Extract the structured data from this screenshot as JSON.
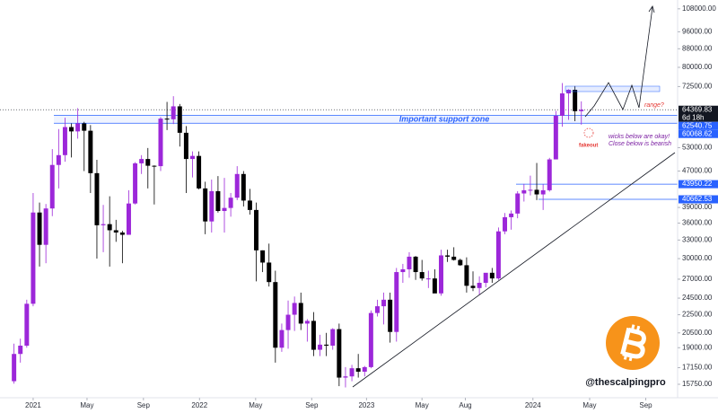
{
  "chart_data": {
    "type": "candlestick",
    "log_scale": true,
    "up_color": "#9c27d9",
    "down_color": "#000000",
    "candles": {
      "open": [
        16000,
        18400,
        19200,
        23800,
        38000,
        32200,
        38800,
        48500,
        51000,
        58900,
        57600,
        60000,
        57800,
        46500,
        35600,
        35800,
        34700,
        34300,
        33900,
        39800,
        48900,
        50000,
        48300,
        48200,
        61500,
        61300,
        65500,
        57200,
        50000,
        50800,
        43000,
        36300,
        42400,
        38300,
        38900,
        41000,
        46300,
        40400,
        38500,
        31300,
        29400,
        26600,
        19000,
        20800,
        22500,
        23900,
        21500,
        21800,
        18800,
        19300,
        19200,
        20900,
        16300,
        16400,
        17100,
        16800,
        17200,
        22700,
        23500,
        24300,
        20600,
        28000,
        28400,
        30300,
        28000,
        27100,
        27100,
        25100,
        30500,
        30300,
        29800,
        29000,
        26100,
        25800,
        26500,
        27900,
        27100,
        34500,
        37100,
        37800,
        41900,
        42600,
        42700,
        41700,
        42600,
        49900,
        62400,
        70000,
        71300,
        63900
      ],
      "high": [
        19400,
        19900,
        24300,
        42000,
        40000,
        39700,
        52600,
        58300,
        61800,
        60000,
        64900,
        60500,
        59500,
        49800,
        39500,
        41300,
        36600,
        34600,
        42600,
        49200,
        51000,
        52900,
        48400,
        62000,
        67000,
        69000,
        66300,
        59200,
        52000,
        52000,
        44500,
        45000,
        45800,
        45400,
        42000,
        48200,
        47000,
        42900,
        40000,
        31300,
        32400,
        28200,
        21500,
        24200,
        24700,
        25200,
        22000,
        22800,
        20300,
        20500,
        21000,
        21500,
        17200,
        17400,
        18400,
        17300,
        23000,
        24300,
        25200,
        25200,
        28600,
        29200,
        31000,
        30400,
        29800,
        28200,
        28400,
        31400,
        31400,
        31800,
        30000,
        30200,
        28100,
        27400,
        27500,
        28600,
        35200,
        37900,
        38400,
        42400,
        44000,
        45900,
        49000,
        43900,
        50300,
        64000,
        73800,
        71500,
        72700,
        67200
      ],
      "low": [
        15800,
        17600,
        19000,
        23500,
        28800,
        29300,
        37300,
        43000,
        49300,
        50400,
        55500,
        47000,
        42000,
        30000,
        31000,
        28800,
        32700,
        29300,
        33900,
        39600,
        46300,
        43000,
        39600,
        47000,
        58000,
        59800,
        53300,
        42000,
        45500,
        42800,
        34000,
        34300,
        38000,
        34300,
        37200,
        40500,
        39200,
        37600,
        26700,
        28000,
        26000,
        17600,
        18600,
        18900,
        20700,
        20800,
        19600,
        18200,
        18200,
        18200,
        18800,
        15600,
        15500,
        16000,
        16300,
        16400,
        17100,
        22300,
        21400,
        19500,
        19600,
        26500,
        27200,
        26900,
        26800,
        25800,
        25400,
        24800,
        29500,
        29700,
        28900,
        25200,
        25400,
        24900,
        25900,
        26500,
        26900,
        34000,
        34800,
        36900,
        40200,
        41500,
        40500,
        38500,
        42300,
        49900,
        59000,
        61100,
        60700,
        59600
      ],
      "close": [
        18400,
        19200,
        23800,
        38000,
        32200,
        38800,
        48500,
        51000,
        58900,
        57600,
        60000,
        57800,
        46500,
        35600,
        35800,
        34700,
        34300,
        33900,
        39800,
        48900,
        50000,
        48300,
        48200,
        61500,
        61300,
        65500,
        57200,
        50000,
        50800,
        43000,
        36300,
        42400,
        38300,
        38900,
        41000,
        46300,
        40400,
        38500,
        31300,
        29400,
        26600,
        19000,
        20800,
        22500,
        23900,
        21500,
        21800,
        18800,
        19300,
        19200,
        20900,
        16300,
        16400,
        17100,
        16800,
        17200,
        22700,
        23500,
        24300,
        20600,
        28000,
        28400,
        30300,
        28000,
        27100,
        27100,
        25100,
        30500,
        30300,
        29800,
        29000,
        26100,
        25800,
        26500,
        27900,
        27100,
        34500,
        37100,
        37800,
        41900,
        42600,
        42700,
        41700,
        42600,
        49900,
        62400,
        70000,
        71300,
        63900,
        64369.83
      ]
    },
    "xlim": [
      -2.2,
      104.1
    ],
    "ylim": [
      14700,
      113000
    ],
    "xticks": [
      {
        "value": 3,
        "label": "2021"
      },
      {
        "value": 11.45,
        "label": "May"
      },
      {
        "value": 20.3,
        "label": "Sep"
      },
      {
        "value": 29.1,
        "label": "2022"
      },
      {
        "value": 37.9,
        "label": "May"
      },
      {
        "value": 46.7,
        "label": "Sep"
      },
      {
        "value": 55.3,
        "label": "2023"
      },
      {
        "value": 64,
        "label": "May"
      },
      {
        "value": 70.8,
        "label": "Aug"
      },
      {
        "value": 81.4,
        "label": "2024"
      },
      {
        "value": 90.3,
        "label": "May"
      },
      {
        "value": 99.1,
        "label": "Sep"
      }
    ],
    "yticks": [
      {
        "value": 108000,
        "label": "108000.00"
      },
      {
        "value": 96000,
        "label": "96000.00"
      },
      {
        "value": 88000,
        "label": "88000.00"
      },
      {
        "value": 80000,
        "label": "80000.00"
      },
      {
        "value": 72500,
        "label": "72500.00"
      },
      {
        "value": 53000,
        "label": "53000.00"
      },
      {
        "value": 47000,
        "label": "47000.00"
      },
      {
        "value": 39000,
        "label": "39000.00"
      },
      {
        "value": 36000,
        "label": "36000.00"
      },
      {
        "value": 33000,
        "label": "33000.00"
      },
      {
        "value": 30000,
        "label": "30000.00"
      },
      {
        "value": 27000,
        "label": "27000.00"
      },
      {
        "value": 24500,
        "label": "24500.00"
      },
      {
        "value": 22500,
        "label": "22500.00"
      },
      {
        "value": 20500,
        "label": "20500.00"
      },
      {
        "value": 19000,
        "label": "19000.00"
      },
      {
        "value": 17150,
        "label": "17150.00"
      },
      {
        "value": 15750,
        "label": "15750.00"
      }
    ],
    "current_price": 64369.83,
    "countdown": "6d 18h",
    "current_color": "#131722",
    "price_lines": [
      {
        "value": 62540.75,
        "color": "#2962ff"
      },
      {
        "value": 60068.62,
        "color": "#2962ff"
      },
      {
        "value": 43950.22,
        "color": "#2962ff"
      },
      {
        "value": 40662.53,
        "color": "#2962ff"
      }
    ],
    "annotations": {
      "zone": "Important support zone",
      "range": "range?",
      "wicks": [
        "wicks below are okay!",
        "Close below is bearish"
      ],
      "fakeout": "fakeout"
    },
    "handle": "@thescalpingpro"
  }
}
